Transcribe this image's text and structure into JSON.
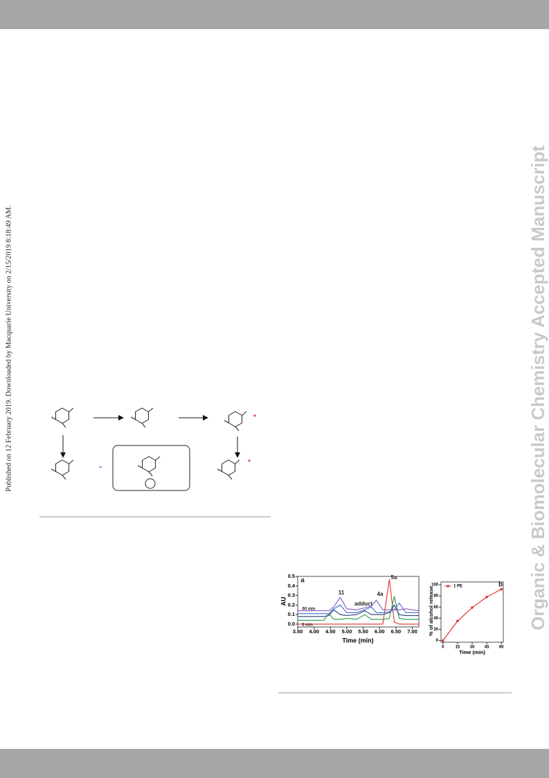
{
  "watermark": "Organic & Biomolecular Chemistry Accepted Manuscript",
  "side_note": "Published on 12 February 2019. Downloaded by Macquarie University on 2/15/2019 8:18:49 AM.",
  "chart_data": [
    {
      "type": "line",
      "x_label": "Time (min)",
      "y_label": "AU",
      "annotations": [
        "a",
        "11",
        "adduct",
        "4a",
        "5a",
        "60 min",
        "0 min"
      ],
      "x": [
        3.5,
        4.3,
        4.45,
        4.6,
        4.8,
        5.0,
        5.3,
        5.55,
        5.75,
        5.9,
        6.1,
        6.3,
        6.45,
        6.6,
        6.8,
        7.2
      ],
      "series": [
        {
          "color": "#e0403c",
          "values": [
            0.0,
            0.0,
            0.0,
            0.0,
            0.0,
            0.0,
            0.0,
            0.0,
            0.0,
            0.0,
            0.0,
            0.47,
            0.02,
            0.0,
            0.0,
            0.0
          ]
        },
        {
          "color": "#3aa05a",
          "values": [
            0.04,
            0.04,
            0.11,
            0.05,
            0.05,
            0.06,
            0.05,
            0.1,
            0.05,
            0.05,
            0.05,
            0.06,
            0.29,
            0.06,
            0.05,
            0.05
          ]
        },
        {
          "color": "#3b4f7a",
          "values": [
            0.08,
            0.08,
            0.09,
            0.15,
            0.1,
            0.09,
            0.1,
            0.14,
            0.1,
            0.1,
            0.1,
            0.12,
            0.2,
            0.1,
            0.09,
            0.09
          ]
        },
        {
          "color": "#4a78d0",
          "values": [
            0.11,
            0.11,
            0.11,
            0.16,
            0.2,
            0.12,
            0.12,
            0.15,
            0.18,
            0.12,
            0.12,
            0.13,
            0.15,
            0.22,
            0.12,
            0.12
          ]
        },
        {
          "color": "#8a5fb8",
          "values": [
            0.14,
            0.14,
            0.14,
            0.18,
            0.28,
            0.16,
            0.15,
            0.17,
            0.19,
            0.25,
            0.15,
            0.15,
            0.15,
            0.15,
            0.16,
            0.14
          ]
        }
      ],
      "xlim": [
        3.5,
        7.2
      ],
      "xticks": [
        {
          "value": 3.5,
          "label": "3.50"
        },
        {
          "value": 4,
          "label": "4.00"
        },
        {
          "value": 4.5,
          "label": "4.50"
        },
        {
          "value": 5,
          "label": "5.00"
        },
        {
          "value": 5.5,
          "label": "5.50"
        },
        {
          "value": 6,
          "label": "6.00"
        },
        {
          "value": 6.5,
          "label": "6.50"
        },
        {
          "value": 7,
          "label": "7.00"
        }
      ],
      "ylim": [
        -0.03,
        0.5
      ],
      "yticks": [
        {
          "value": 0,
          "label": "0.0"
        },
        0.1,
        0.2,
        0.3,
        0.4,
        0.5
      ]
    },
    {
      "type": "line",
      "x_label": "Time (min)",
      "y_label": "% of alcohol release",
      "annotations": [
        "b"
      ],
      "x": [
        0,
        15,
        30,
        45,
        60
      ],
      "series": [
        {
          "name": "1 PE",
          "color": "#e0312e",
          "values": [
            0,
            35,
            59,
            78,
            92
          ]
        }
      ],
      "xlim": [
        -2,
        62
      ],
      "xticks": [
        0,
        15,
        30,
        45,
        60
      ],
      "ylim": [
        -3,
        105
      ],
      "yticks": [
        0,
        20,
        40,
        60,
        80,
        100
      ],
      "legend": "upper left",
      "markers": true
    }
  ]
}
